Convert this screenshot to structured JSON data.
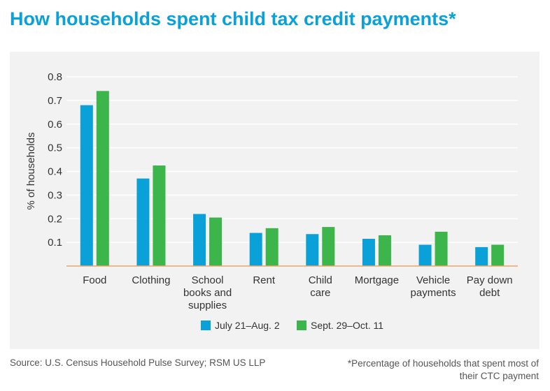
{
  "title": "How households spent child tax credit payments*",
  "source": "Source: U.S. Census Household Pulse Survey; RSM US LLP",
  "footnote": "*Percentage of households that spent most of their CTC payment",
  "colors": {
    "series1": "#0aa0d8",
    "series2": "#3cb54a",
    "axis": "#f0a26a",
    "title": "#0aa0d8",
    "panel": "#f2f2f2"
  },
  "chart_data": {
    "type": "bar",
    "title": "How households spent child tax credit payments*",
    "ylabel": "% of households",
    "xlabel": "",
    "ylim": [
      0,
      0.8
    ],
    "yticks": [
      "0.1",
      "0.2",
      "0.3",
      "0.4",
      "0.5",
      "0.6",
      "0.7",
      "0.8"
    ],
    "grid": true,
    "legend_position": "bottom-center",
    "categories": [
      [
        "Food"
      ],
      [
        "Clothing"
      ],
      [
        "School",
        "books and",
        "supplies"
      ],
      [
        "Rent"
      ],
      [
        "Child",
        "care"
      ],
      [
        "Mortgage"
      ],
      [
        "Vehicle",
        "payments"
      ],
      [
        "Pay down",
        "debt"
      ]
    ],
    "series": [
      {
        "name": "July 21–Aug. 2",
        "color": "#0aa0d8",
        "values": [
          0.68,
          0.37,
          0.22,
          0.14,
          0.135,
          0.115,
          0.09,
          0.08
        ]
      },
      {
        "name": "Sept. 29–Oct. 11",
        "color": "#3cb54a",
        "values": [
          0.74,
          0.425,
          0.205,
          0.16,
          0.165,
          0.13,
          0.145,
          0.09
        ]
      }
    ]
  }
}
